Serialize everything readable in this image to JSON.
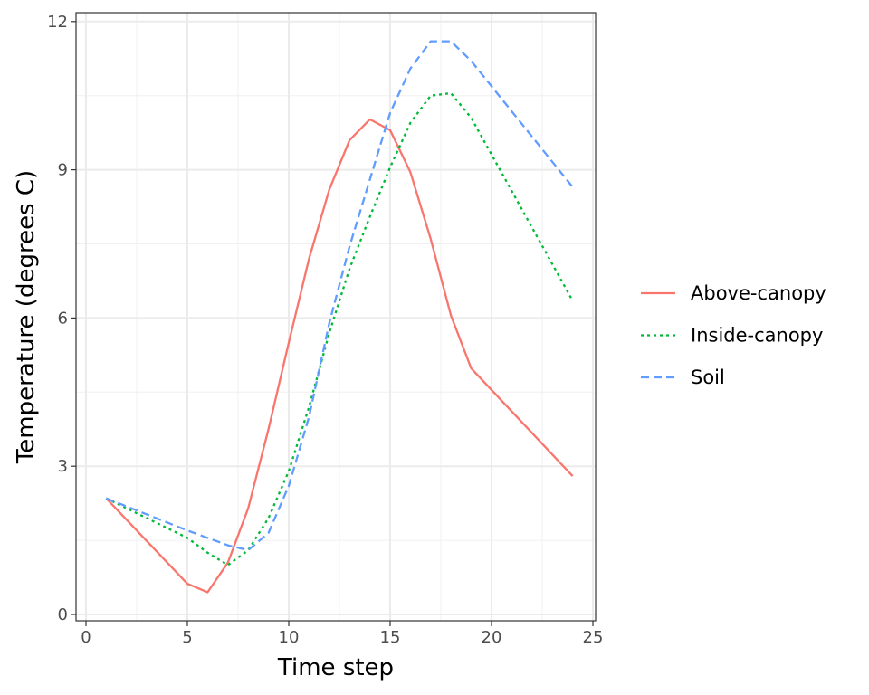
{
  "chart_data": {
    "type": "line",
    "xlabel": "Time step",
    "ylabel": "Temperature (degrees C)",
    "xlim": [
      0,
      25
    ],
    "ylim": [
      0,
      12
    ],
    "xticks": [
      0,
      5,
      10,
      15,
      20,
      25
    ],
    "xtick_labels": [
      "0",
      "5",
      "10",
      "15",
      "20",
      "25"
    ],
    "yticks": [
      0,
      3,
      6,
      9,
      12
    ],
    "ytick_labels": [
      "0",
      "3",
      "6",
      "9",
      "12"
    ],
    "grid": true,
    "legend_position": "right",
    "x": [
      1,
      5,
      6,
      7,
      8,
      9,
      10,
      11,
      12,
      13,
      14,
      15,
      16,
      17,
      18,
      19,
      24
    ],
    "series": [
      {
        "name": "Above-canopy",
        "color": "#F8766D",
        "dash": "solid",
        "values": [
          2.35,
          0.62,
          0.45,
          1.05,
          2.15,
          3.75,
          5.5,
          7.2,
          8.6,
          9.6,
          10.02,
          9.8,
          8.95,
          7.6,
          6.05,
          4.98,
          2.8
        ]
      },
      {
        "name": "Inside-canopy",
        "color": "#00BA38",
        "dash": "dotted",
        "values": [
          2.35,
          1.55,
          1.25,
          1.0,
          1.3,
          1.95,
          2.9,
          4.2,
          5.7,
          7.0,
          8.05,
          9.05,
          9.95,
          10.5,
          10.55,
          10.05,
          6.35
        ]
      },
      {
        "name": "Soil",
        "color": "#619CFF",
        "dash": "dashed",
        "values": [
          2.35,
          1.7,
          1.55,
          1.4,
          1.3,
          1.65,
          2.6,
          4.0,
          5.9,
          7.45,
          8.8,
          10.15,
          11.05,
          11.6,
          11.6,
          11.2,
          8.65
        ]
      }
    ]
  }
}
